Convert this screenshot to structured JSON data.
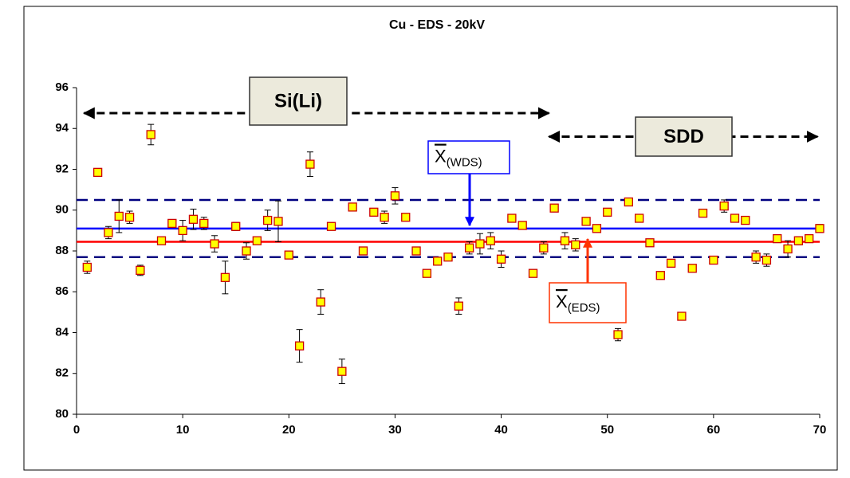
{
  "chart_data": {
    "type": "scatter",
    "title": "Cu - EDS - 20kV",
    "x": [
      1,
      2,
      3,
      4,
      5,
      6,
      7,
      8,
      9,
      10,
      11,
      12,
      13,
      14,
      15,
      16,
      17,
      18,
      19,
      20,
      21,
      22,
      23,
      24,
      25,
      26,
      27,
      28,
      29,
      30,
      31,
      32,
      33,
      34,
      35,
      36,
      37,
      38,
      39,
      40,
      41,
      42,
      43,
      44,
      45,
      46,
      47,
      48,
      49,
      50,
      51,
      52,
      53,
      54,
      55,
      56,
      57,
      58,
      59,
      60,
      61,
      62,
      63,
      64,
      65,
      66,
      67,
      68,
      69,
      70
    ],
    "series": [
      {
        "color": "#ffff00",
        "edgecolor": "#cc0000",
        "values": [
          87.2,
          91.85,
          88.9,
          89.7,
          89.65,
          87.05,
          93.7,
          88.5,
          89.35,
          89.0,
          89.55,
          89.35,
          88.35,
          86.7,
          89.2,
          88.0,
          88.5,
          89.5,
          89.45,
          87.8,
          83.35,
          92.25,
          85.5,
          89.2,
          82.1,
          90.15,
          88.0,
          89.9,
          89.65,
          90.7,
          89.65,
          88.0,
          86.9,
          87.5,
          87.7,
          85.3,
          88.15,
          88.35,
          88.5,
          87.6,
          89.6,
          89.25,
          86.9,
          88.15,
          90.1,
          88.5,
          88.3,
          89.45,
          89.1,
          89.9,
          83.9,
          90.4,
          89.6,
          88.4,
          86.8,
          87.4,
          84.8,
          87.15,
          89.85,
          87.55,
          90.2,
          89.6,
          89.5,
          87.7,
          87.55,
          88.6,
          88.1,
          88.5,
          88.6,
          89.1
        ],
        "errors": [
          0.3,
          null,
          0.3,
          0.8,
          0.3,
          0.25,
          0.5,
          null,
          null,
          0.5,
          0.5,
          0.3,
          0.4,
          0.8,
          0.2,
          0.4,
          null,
          0.5,
          1.0,
          0.1,
          0.8,
          0.6,
          0.6,
          null,
          0.6,
          null,
          null,
          null,
          0.3,
          0.4,
          null,
          null,
          null,
          0.2,
          null,
          0.4,
          0.3,
          0.5,
          0.4,
          0.4,
          null,
          null,
          null,
          0.3,
          null,
          0.4,
          0.3,
          null,
          null,
          null,
          0.3,
          null,
          null,
          null,
          null,
          null,
          null,
          null,
          null,
          null,
          0.3,
          null,
          null,
          0.3,
          0.3,
          null,
          0.4,
          0.2,
          null,
          0.2
        ]
      }
    ],
    "hlines": [
      {
        "value": 89.1,
        "color": "#0000ff",
        "style": "solid",
        "label": "X",
        "sublabel": "(WDS)"
      },
      {
        "value": 90.5,
        "color": "#000080",
        "style": "dashed"
      },
      {
        "value": 87.7,
        "color": "#000080",
        "style": "dashed"
      },
      {
        "value": 88.45,
        "color": "#ff0000",
        "style": "solid",
        "label": "X",
        "sublabel": "(EDS)"
      }
    ],
    "regions": [
      {
        "label": "Si(Li)",
        "xrange": [
          0.7,
          44.5
        ],
        "y": 94.75
      },
      {
        "label": "SDD",
        "xrange": [
          44.5,
          69.8
        ],
        "y": 93.6
      }
    ],
    "xlim": [
      0,
      70
    ],
    "ylim": [
      80,
      96
    ],
    "xticks": [
      0,
      10,
      20,
      30,
      40,
      50,
      60,
      70
    ],
    "yticks": [
      80,
      82,
      84,
      86,
      88,
      90,
      92,
      94,
      96
    ],
    "grid": false
  }
}
